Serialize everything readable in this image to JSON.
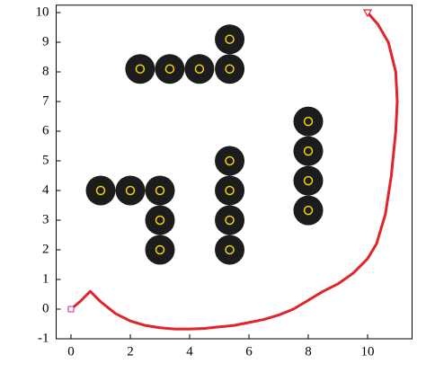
{
  "chart_data": {
    "type": "path-plan",
    "xlim": [
      -0.5,
      11.5
    ],
    "ylim": [
      -1,
      10.25
    ],
    "xticks": [
      0,
      2,
      4,
      6,
      8,
      10
    ],
    "yticks": [
      -1,
      0,
      1,
      2,
      3,
      4,
      5,
      6,
      7,
      8,
      9,
      10
    ],
    "obstacle_radius": 0.5,
    "series": [
      {
        "type": "obstacles",
        "color": "#1c1c1c",
        "center_color": "#f2d400",
        "x": [
          2.33,
          3.33,
          4.33,
          5.35,
          5.35,
          1,
          2,
          3,
          3,
          3,
          5.35,
          5.35,
          5.35,
          5.35,
          8,
          8,
          8,
          8
        ],
        "values": [
          8.1,
          8.1,
          8.1,
          8.1,
          9.1,
          4,
          4,
          4,
          3,
          2,
          5,
          4,
          3,
          2,
          6.33,
          5.33,
          4.33,
          3.33
        ]
      },
      {
        "type": "path",
        "color": "#e0242a",
        "x": [
          0,
          0.3,
          0.65,
          0.8,
          1,
          1.5,
          2,
          2.5,
          3,
          3.5,
          4,
          4.5,
          5,
          5.5,
          6,
          6.5,
          7,
          7.5,
          8,
          8.5,
          9,
          9.5,
          10,
          10.3,
          10.6,
          10.8,
          10.95,
          11,
          10.95,
          10.7,
          10.35,
          10
        ],
        "values": [
          0,
          0.25,
          0.6,
          0.45,
          0.25,
          -0.15,
          -0.4,
          -0.55,
          -0.63,
          -0.67,
          -0.67,
          -0.65,
          -0.6,
          -0.55,
          -0.45,
          -0.35,
          -0.2,
          0,
          0.3,
          0.6,
          0.85,
          1.2,
          1.7,
          2.2,
          3.2,
          4.5,
          6,
          7,
          8,
          9,
          9.6,
          10
        ]
      },
      {
        "type": "start",
        "color": "#d0208a",
        "x": [
          0
        ],
        "values": [
          0
        ]
      },
      {
        "type": "goal",
        "color": "#e0242a",
        "x": [
          10
        ],
        "values": [
          10
        ]
      }
    ]
  }
}
